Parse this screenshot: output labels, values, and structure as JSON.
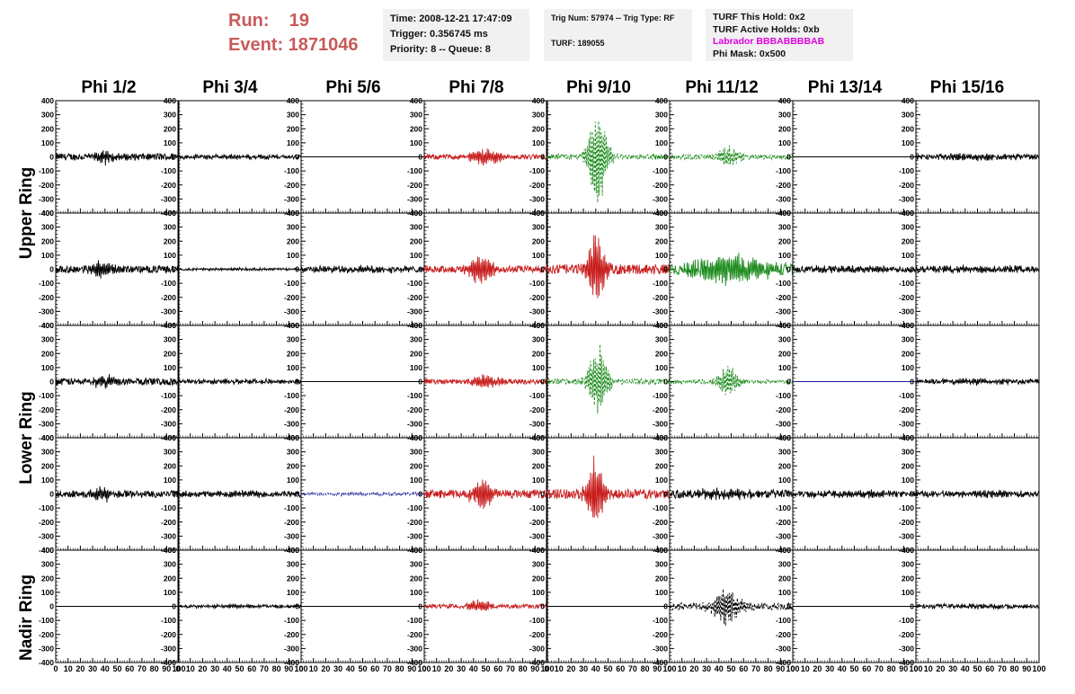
{
  "header": {
    "run_label": "Run:",
    "run_value": "19",
    "event_label": "Event:",
    "event_value": "1871046"
  },
  "info_time": {
    "time": "Time: 2008-12-21 17:47:09",
    "trigger": "Trigger: 0.356745 ms",
    "priority": "Priority: 8 -- Queue: 8"
  },
  "info_trig": {
    "trig": "Trig Num: 57974 -- Trig Type: RF",
    "turf": "TURF: 189055"
  },
  "info_turf": {
    "hold": "TURF This Hold: 0x2",
    "active": "TURF Active Holds: 0xb",
    "labrador": "Labrador BBBABBBBAB",
    "phimask": "Phi Mask: 0x500"
  },
  "columns": [
    "Phi 1/2",
    "Phi 3/4",
    "Phi 5/6",
    "Phi 7/8",
    "Phi 9/10",
    "Phi 11/12",
    "Phi 13/14",
    "Phi 15/16"
  ],
  "rings": [
    "Upper Ring",
    "Lower Ring",
    "Nadir Ring"
  ],
  "colors": {
    "black": "#000000",
    "red": "#c81e1e",
    "green": "#1e8c1e",
    "blue": "#1e1e9a",
    "title_red": "#c85a5a"
  },
  "chart_data": {
    "type": "line",
    "xlim": [
      0,
      100
    ],
    "ylim": [
      -400,
      400
    ],
    "y_ticks": [
      -400,
      -300,
      -200,
      -100,
      0,
      100,
      200,
      300,
      400
    ],
    "x_ticks": [
      0,
      10,
      20,
      30,
      40,
      50,
      60,
      70,
      80,
      90,
      100
    ],
    "panels": [
      [
        {
          "color": "black",
          "style": "solid",
          "amp": 25,
          "center": 40,
          "width": 10,
          "peak": 45
        },
        {
          "color": "black",
          "style": "solid",
          "amp": 15,
          "center": 50,
          "width": 40,
          "peak": 15
        },
        {
          "color": "black",
          "style": "flat",
          "amp": 0,
          "center": 50,
          "width": 10,
          "peak": 0
        },
        {
          "color": "red",
          "style": "solid",
          "amp": 18,
          "center": 50,
          "width": 14,
          "peak": 60
        },
        {
          "color": "green",
          "style": "dashed",
          "amp": 20,
          "center": 42,
          "width": 8,
          "peak": 380
        },
        {
          "color": "green",
          "style": "dashed",
          "amp": 18,
          "center": 48,
          "width": 10,
          "peak": 80
        },
        {
          "color": "black",
          "style": "flat",
          "amp": 0,
          "center": 50,
          "width": 10,
          "peak": 0
        },
        {
          "color": "black",
          "style": "solid",
          "amp": 20,
          "center": 50,
          "width": 40,
          "peak": 20
        }
      ],
      [
        {
          "color": "black",
          "style": "solid",
          "amp": 25,
          "center": 38,
          "width": 10,
          "peak": 60
        },
        {
          "color": "black",
          "style": "solid",
          "amp": 8,
          "center": 50,
          "width": 40,
          "peak": 8
        },
        {
          "color": "black",
          "style": "solid",
          "amp": 22,
          "center": 50,
          "width": 40,
          "peak": 22
        },
        {
          "color": "red",
          "style": "solid",
          "amp": 25,
          "center": 45,
          "width": 10,
          "peak": 120
        },
        {
          "color": "red",
          "style": "solid",
          "amp": 35,
          "center": 40,
          "width": 7,
          "peak": 300
        },
        {
          "color": "green",
          "style": "solid",
          "amp": 45,
          "center": 50,
          "width": 30,
          "peak": 100
        },
        {
          "color": "black",
          "style": "solid",
          "amp": 22,
          "center": 50,
          "width": 40,
          "peak": 22
        },
        {
          "color": "black",
          "style": "solid",
          "amp": 22,
          "center": 50,
          "width": 40,
          "peak": 22
        }
      ],
      [
        {
          "color": "black",
          "style": "solid",
          "amp": 25,
          "center": 40,
          "width": 10,
          "peak": 55
        },
        {
          "color": "black",
          "style": "solid",
          "amp": 15,
          "center": 50,
          "width": 40,
          "peak": 15
        },
        {
          "color": "black",
          "style": "flat",
          "amp": 0,
          "center": 50,
          "width": 10,
          "peak": 0
        },
        {
          "color": "red",
          "style": "solid",
          "amp": 18,
          "center": 50,
          "width": 14,
          "peak": 50
        },
        {
          "color": "green",
          "style": "dashed",
          "amp": 20,
          "center": 42,
          "width": 8,
          "peak": 280
        },
        {
          "color": "green",
          "style": "dashed",
          "amp": 15,
          "center": 48,
          "width": 8,
          "peak": 130
        },
        {
          "color": "blue",
          "style": "flat",
          "amp": 0,
          "center": 50,
          "width": 10,
          "peak": 0
        },
        {
          "color": "black",
          "style": "solid",
          "amp": 18,
          "center": 50,
          "width": 40,
          "peak": 18
        }
      ],
      [
        {
          "color": "black",
          "style": "solid",
          "amp": 25,
          "center": 38,
          "width": 10,
          "peak": 50
        },
        {
          "color": "black",
          "style": "solid",
          "amp": 20,
          "center": 50,
          "width": 40,
          "peak": 20
        },
        {
          "color": "blue",
          "style": "dashed",
          "amp": 10,
          "center": 50,
          "width": 40,
          "peak": 10
        },
        {
          "color": "red",
          "style": "solid",
          "amp": 30,
          "center": 47,
          "width": 9,
          "peak": 130
        },
        {
          "color": "red",
          "style": "solid",
          "amp": 35,
          "center": 40,
          "width": 7,
          "peak": 290
        },
        {
          "color": "black",
          "style": "solid",
          "amp": 30,
          "center": 45,
          "width": 20,
          "peak": 40
        },
        {
          "color": "black",
          "style": "solid",
          "amp": 22,
          "center": 50,
          "width": 40,
          "peak": 22
        },
        {
          "color": "black",
          "style": "solid",
          "amp": 22,
          "center": 50,
          "width": 40,
          "peak": 22
        }
      ],
      [
        {
          "color": "black",
          "style": "flat",
          "amp": 0,
          "center": 50,
          "width": 10,
          "peak": 0
        },
        {
          "color": "black",
          "style": "solid",
          "amp": 12,
          "center": 50,
          "width": 40,
          "peak": 12
        },
        {
          "color": "black",
          "style": "flat",
          "amp": 0,
          "center": 50,
          "width": 10,
          "peak": 0
        },
        {
          "color": "red",
          "style": "solid",
          "amp": 15,
          "center": 45,
          "width": 12,
          "peak": 45
        },
        {
          "color": "black",
          "style": "flat",
          "amp": 0,
          "center": 50,
          "width": 10,
          "peak": 0
        },
        {
          "color": "black",
          "style": "dashed",
          "amp": 25,
          "center": 46,
          "width": 12,
          "peak": 140
        },
        {
          "color": "black",
          "style": "flat",
          "amp": 0,
          "center": 50,
          "width": 10,
          "peak": 0
        },
        {
          "color": "black",
          "style": "solid",
          "amp": 15,
          "center": 50,
          "width": 40,
          "peak": 15
        }
      ]
    ]
  }
}
